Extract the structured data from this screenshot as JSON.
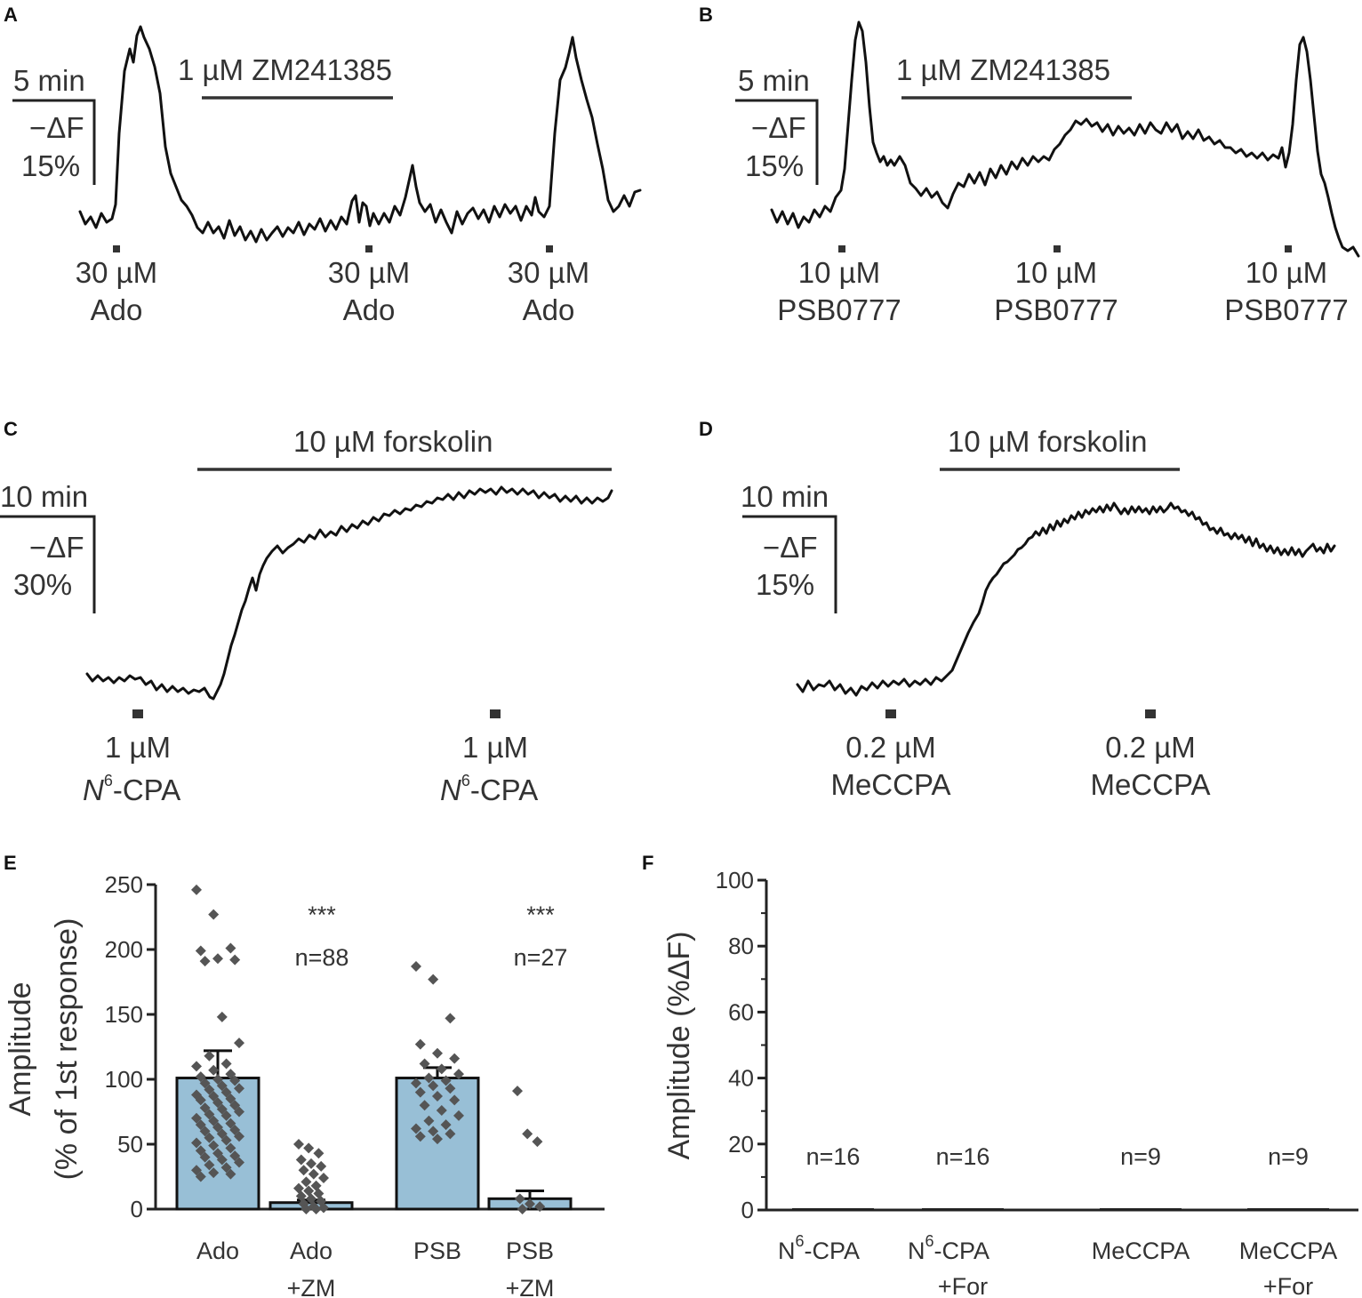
{
  "panels": {
    "A": {
      "label": "A",
      "drug_bar": "1 µM ZM241385",
      "scale_time": "5 min",
      "scale_df_1": "−ΔF",
      "scale_df_2": "15%",
      "stim": [
        [
          "30 µM",
          "Ado"
        ],
        [
          "30 µM",
          "Ado"
        ],
        [
          "30 µM",
          "Ado"
        ]
      ]
    },
    "B": {
      "label": "B",
      "drug_bar": "1 µM ZM241385",
      "scale_time": "5 min",
      "scale_df_1": "−ΔF",
      "scale_df_2": "15%",
      "stim": [
        [
          "10 µM",
          "PSB0777"
        ],
        [
          "10 µM",
          "PSB0777"
        ],
        [
          "10 µM",
          "PSB0777"
        ]
      ]
    },
    "C": {
      "label": "C",
      "drug_bar": "10 µM forskolin",
      "scale_time": "10 min",
      "scale_df_1": "−ΔF",
      "scale_df_2": "30%",
      "stim": [
        [
          "1 µM",
          "N",
          "6",
          "-CPA"
        ],
        [
          "1 µM",
          "N",
          "6",
          "-CPA"
        ]
      ]
    },
    "D": {
      "label": "D",
      "drug_bar": "10 µM forskolin",
      "scale_time": "10 min",
      "scale_df_1": "−ΔF",
      "scale_df_2": "15%",
      "stim": [
        [
          "0.2 µM",
          "MeCCPA"
        ],
        [
          "0.2 µM",
          "MeCCPA"
        ]
      ]
    },
    "E": {
      "label": "E"
    },
    "F": {
      "label": "F"
    }
  },
  "chart_data": [
    {
      "panel": "E",
      "type": "bar",
      "ylabel_1": "Amplitude",
      "ylabel_2": "(% of 1st response)",
      "ylim": [
        0,
        250
      ],
      "yticks": [
        0,
        50,
        100,
        150,
        200,
        250
      ],
      "bar_color": "#98bfd6",
      "point_color": "#555555",
      "categories": [
        [
          "Ado",
          ""
        ],
        [
          "Ado",
          "+ZM"
        ],
        [
          "PSB",
          ""
        ],
        [
          "PSB",
          "+ZM"
        ]
      ],
      "values": [
        101,
        5,
        101,
        8
      ],
      "errors": [
        21,
        2,
        8,
        6
      ],
      "annotations": [
        {
          "category": 1,
          "stars": "***",
          "n": "n=88"
        },
        {
          "category": 3,
          "stars": "***",
          "n": "n=27"
        }
      ],
      "points": [
        [
          246,
          227,
          201,
          199,
          193,
          192,
          191,
          148,
          128,
          118,
          112,
          110,
          107,
          104,
          102,
          100,
          99,
          97,
          95,
          93,
          92,
          90,
          88,
          87,
          85,
          84,
          82,
          80,
          78,
          77,
          75,
          73,
          72,
          70,
          68,
          66,
          65,
          63,
          61,
          60,
          58,
          56,
          55,
          53,
          51,
          49,
          47,
          45,
          43,
          41,
          40,
          38,
          36,
          34,
          32,
          30,
          28,
          27,
          25
        ],
        [
          50,
          47,
          43,
          38,
          35,
          33,
          30,
          27,
          24,
          21,
          18,
          16,
          14,
          12,
          10,
          8,
          6,
          4,
          2,
          1,
          0,
          0
        ],
        [
          187,
          177,
          147,
          127,
          120,
          116,
          112,
          108,
          104,
          101,
          99,
          97,
          95,
          93,
          90,
          87,
          84,
          80,
          76,
          72,
          68,
          65,
          62,
          60,
          58,
          56,
          54
        ],
        [
          91,
          58,
          52,
          8,
          4,
          2,
          0
        ]
      ]
    },
    {
      "panel": "F",
      "type": "bar",
      "ylabel_1": "Amplitude (%ΔF)",
      "ylim": [
        0,
        100
      ],
      "yticks": [
        0,
        20,
        40,
        60,
        80,
        100
      ],
      "categories": [
        [
          "N",
          "6",
          "-CPA",
          ""
        ],
        [
          "N",
          "6",
          "-CPA",
          "+For"
        ],
        [
          "MeCCPA",
          "",
          "",
          ""
        ],
        [
          "MeCCPA",
          "",
          "",
          "+For"
        ]
      ],
      "values": [
        0,
        0,
        0,
        0
      ],
      "n_labels": [
        "n=16",
        "n=16",
        "n=9",
        "n=9"
      ]
    }
  ]
}
